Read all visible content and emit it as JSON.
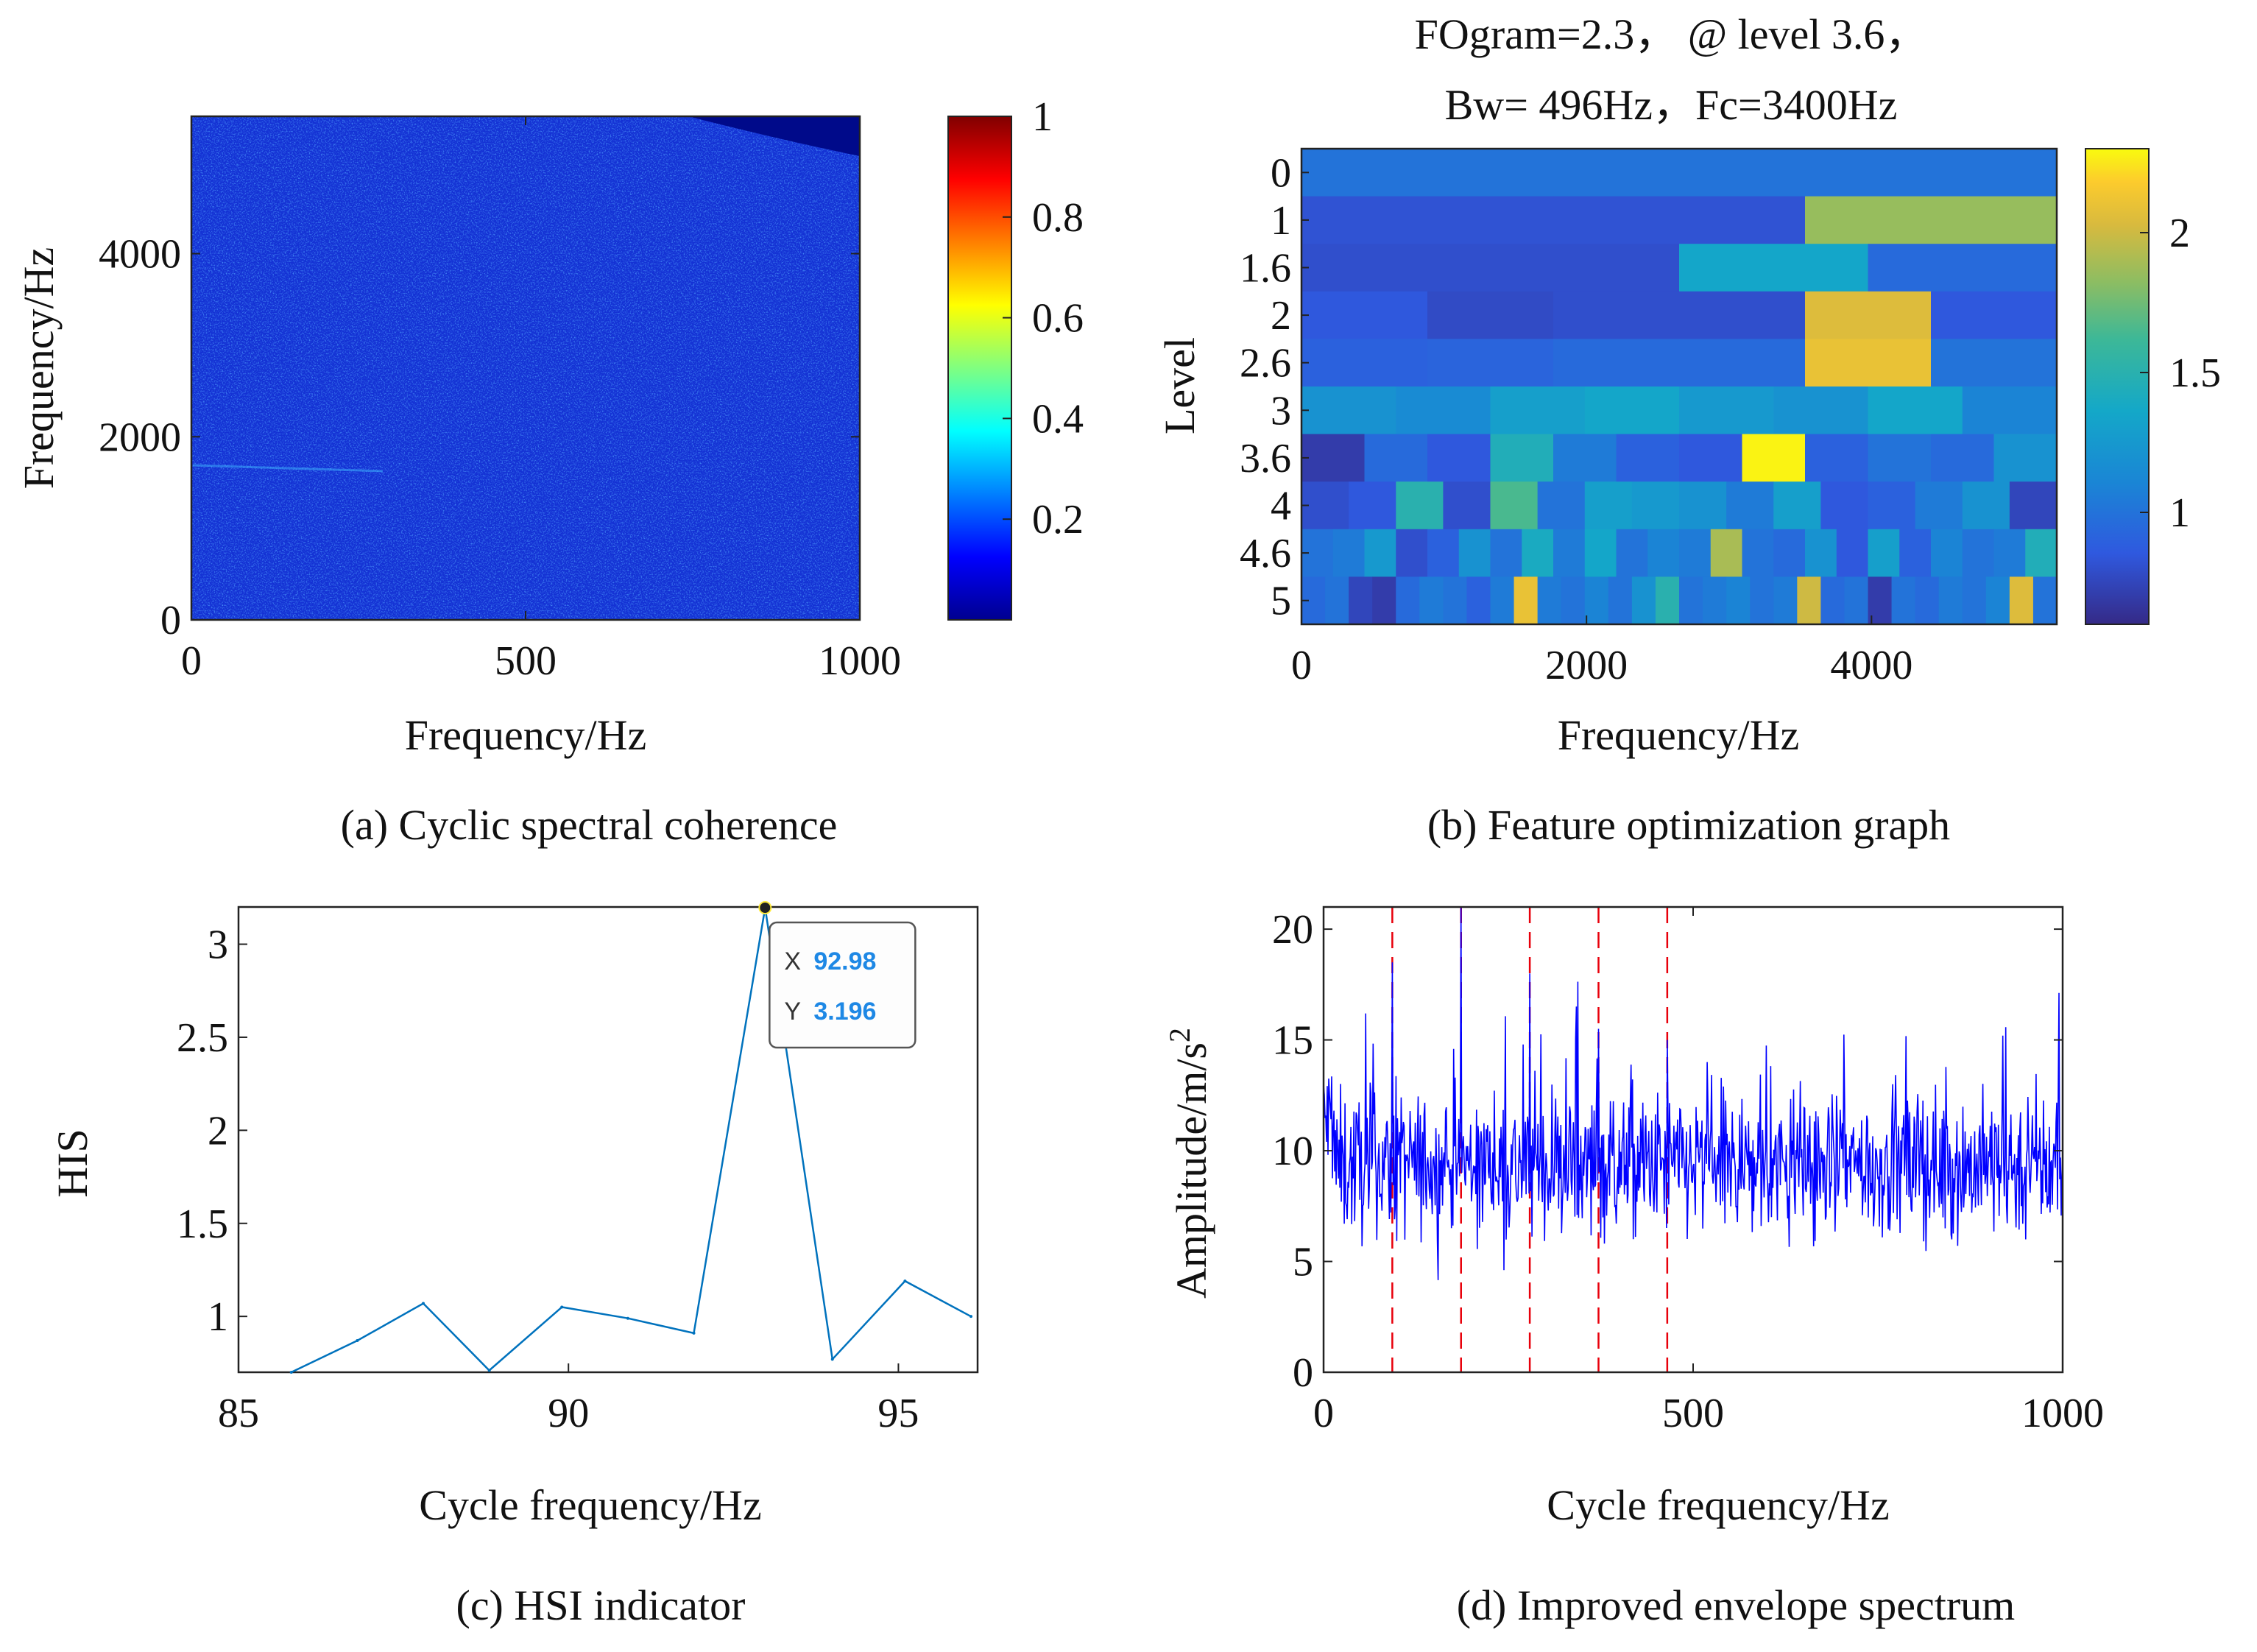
{
  "colors": {
    "axis": "#222222",
    "hsi_line": "#0072BD",
    "env_line": "#0000FF",
    "fault_line": "#E8000B",
    "datatip_value": "#1E88E5"
  },
  "chart_data": [
    {
      "id": "a",
      "type": "heatmap",
      "caption": "(a) Cyclic spectral coherence",
      "xlabel": "Frequency/Hz",
      "ylabel": "Frequency/Hz",
      "xlim": [
        0,
        1000
      ],
      "ylim": [
        0,
        5500
      ],
      "xticks": [
        0,
        500,
        1000
      ],
      "yticks": [
        0,
        2000,
        4000
      ],
      "xtick_labels": [
        "0",
        "500",
        "1000"
      ],
      "ytick_labels": [
        "0",
        "2000",
        "4000"
      ],
      "colormap": "jet",
      "colorbar": {
        "min": 0,
        "max": 1,
        "ticks": [
          0.2,
          0.4,
          0.6,
          0.8,
          1
        ],
        "tick_labels": [
          "0.2",
          "0.4",
          "0.6",
          "0.8",
          "1"
        ]
      }
    },
    {
      "id": "b",
      "type": "heatmap",
      "title_line1": "FOgram=2.3，  @ level 3.6，",
      "title_line2": "Bw= 496Hz，Fc=3400Hz",
      "caption": "(b) Feature optimization graph",
      "xlabel": "Frequency/Hz",
      "ylabel": "Level",
      "xlim": [
        0,
        5300
      ],
      "xticks": [
        0,
        2000,
        4000
      ],
      "xtick_labels": [
        "0",
        "2000",
        "4000"
      ],
      "levels": [
        "0",
        "1",
        "1.6",
        "2",
        "2.6",
        "3",
        "3.6",
        "4",
        "4.6",
        "5"
      ],
      "colormap": "parula",
      "colorbar": {
        "min": 0.6,
        "max": 2.3,
        "ticks": [
          1,
          1.5,
          2
        ],
        "tick_labels": [
          "1",
          "1.5",
          "2"
        ]
      },
      "rows": [
        [
          1.0
        ],
        [
          0.82,
          0.82,
          1.85
        ],
        [
          0.8,
          0.8,
          1.35,
          0.95
        ],
        [
          0.85,
          0.78,
          0.8,
          0.8,
          2.05,
          0.85
        ],
        [
          0.9,
          0.92,
          0.95,
          0.95,
          2.1,
          1.0
        ],
        [
          1.2,
          1.15,
          1.3,
          1.35,
          1.25,
          1.2,
          1.35,
          1.1
        ],
        [
          0.7,
          0.95,
          0.85,
          1.45,
          1.05,
          0.9,
          0.85,
          2.28,
          0.9,
          1.0,
          0.95,
          1.2
        ],
        [
          0.8,
          0.85,
          1.5,
          0.8,
          1.65,
          1.0,
          1.3,
          1.25,
          1.2,
          1.05,
          1.3,
          0.85,
          0.9,
          1.05,
          1.2,
          0.75
        ],
        [
          1.0,
          1.05,
          1.25,
          0.8,
          0.9,
          1.2,
          1.0,
          1.4,
          1.05,
          1.35,
          1.0,
          1.1,
          1.05,
          1.9,
          1.0,
          0.95,
          1.2,
          0.85,
          1.3,
          0.9,
          1.1,
          1.0,
          1.05,
          1.45
        ],
        [
          0.95,
          1.0,
          0.75,
          0.7,
          0.95,
          1.05,
          1.0,
          0.9,
          1.05,
          2.1,
          1.05,
          1.0,
          1.1,
          1.0,
          1.2,
          1.5,
          1.0,
          1.05,
          1.1,
          1.0,
          1.05,
          2.0,
          0.95,
          1.0,
          0.7,
          1.0,
          0.95,
          1.05,
          1.0,
          1.1,
          2.05,
          1.0
        ]
      ]
    },
    {
      "id": "c",
      "type": "line",
      "caption": "(c) HSI indicator",
      "xlabel": "Cycle frequency/Hz",
      "ylabel": "HIS",
      "xlim": [
        85,
        96.2
      ],
      "ylim": [
        0.7,
        3.2
      ],
      "xticks": [
        85,
        90,
        95
      ],
      "yticks": [
        1,
        1.5,
        2,
        2.5,
        3
      ],
      "xtick_labels": [
        "85",
        "90",
        "95"
      ],
      "ytick_labels": [
        "1",
        "1.5",
        "2",
        "2.5",
        "3"
      ],
      "x": [
        85.8,
        86.8,
        87.8,
        88.8,
        89.9,
        90.9,
        91.9,
        92.98,
        94.0,
        95.1,
        96.1
      ],
      "y": [
        0.7,
        0.87,
        1.07,
        0.71,
        1.05,
        0.99,
        0.91,
        3.196,
        0.77,
        1.19,
        1.0
      ],
      "datatip": {
        "x_label": "X",
        "x_value": "92.98",
        "y_label": "Y",
        "y_value": "3.196"
      }
    },
    {
      "id": "d",
      "type": "line",
      "caption": "(d) Improved envelope spectrum",
      "xlabel": "Cycle frequency/Hz",
      "ylabel_main": "Amplitude/m/s",
      "ylabel_sup": "2",
      "xlim": [
        0,
        1000
      ],
      "ylim": [
        0,
        21
      ],
      "xticks": [
        0,
        500,
        1000
      ],
      "yticks": [
        0,
        5,
        10,
        15,
        20
      ],
      "xtick_labels": [
        "0",
        "500",
        "1000"
      ],
      "ytick_labels": [
        "0",
        "5",
        "10",
        "15",
        "20"
      ],
      "fault_frequencies": [
        93,
        186,
        279,
        372,
        465
      ],
      "signal": {
        "n_points": 1000,
        "mean": 9.3,
        "min": 3.2,
        "max": 21.0
      },
      "peaks": [
        {
          "x": 93,
          "y": 18.5
        },
        {
          "x": 186,
          "y": 21.0
        },
        {
          "x": 279,
          "y": 18.0
        },
        {
          "x": 372,
          "y": 15.5
        },
        {
          "x": 465,
          "y": 15.0
        }
      ]
    }
  ]
}
